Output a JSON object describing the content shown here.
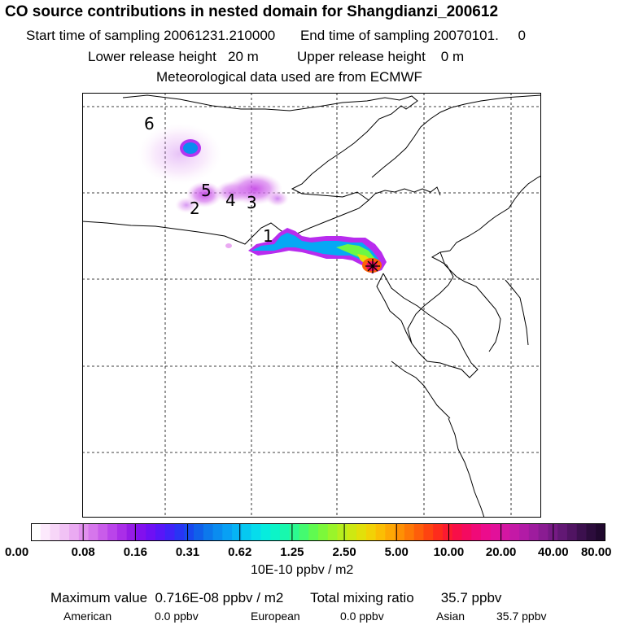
{
  "header": {
    "title": "CO  source contributions in nested domain for Shangdianzi_200612",
    "start_label": "Start time of sampling",
    "start_value": "20061231.210000",
    "end_label": "End time of sampling",
    "end_value": "20070101.",
    "end_suffix": "0",
    "lower_label": "Lower release height",
    "lower_value": "20 m",
    "upper_label": "Upper release height",
    "upper_value": "0 m",
    "met_data": "Meteorological data used are from ECMWF"
  },
  "map": {
    "source_labels": [
      "1",
      "2",
      "3",
      "4",
      "5",
      "6"
    ],
    "receptor_marker": "star-marker"
  },
  "colorbar": {
    "tick_labels": [
      "0.00",
      "0.08",
      "0.16",
      "0.31",
      "0.62",
      "1.25",
      "2.50",
      "5.00",
      "10.00",
      "20.00",
      "40.00",
      "80.00"
    ],
    "colors": [
      "#ffffff",
      "#fce9fc",
      "#f7d6f8",
      "#f1c2f5",
      "#eaaaf2",
      "#e190ee",
      "#d676ec",
      "#c95cea",
      "#ba44ea",
      "#aa2ee8",
      "#961ce6",
      "#8210ee",
      "#6e10f4",
      "#5816f8",
      "#4022f8",
      "#2834f4",
      "#1848ee",
      "#1060ea",
      "#0c78ec",
      "#0a8cf0",
      "#08a0f4",
      "#06b4f4",
      "#06c8f0",
      "#06dcec",
      "#06ecde",
      "#0cf4c8",
      "#18f8ae",
      "#2cfa90",
      "#44fa70",
      "#60fa50",
      "#7cf83a",
      "#9af42a",
      "#b6ee1e",
      "#cee812",
      "#e2e00a",
      "#f2d206",
      "#fbbe04",
      "#fea804",
      "#fe9004",
      "#fe7806",
      "#fe5e0a",
      "#fe4410",
      "#fe2c1c",
      "#fc1a30",
      "#f80e48",
      "#f40a60",
      "#f00a78",
      "#ec0c8c",
      "#e2109a",
      "#d416a2",
      "#c419a6",
      "#b21ba6",
      "#9e1c9e",
      "#8a1c92",
      "#761a84",
      "#621874",
      "#501462",
      "#3c104e",
      "#2c0c3c",
      "#20082e"
    ],
    "units": "10E-10 ppbv / m2"
  },
  "summary": {
    "max_label": "Maximum value",
    "max_value": "0.716E-08 ppbv / m2",
    "total_label": "Total mixing ratio",
    "total_value": "35.7 ppbv",
    "regions": [
      {
        "name": "American",
        "value": "0.0 ppbv"
      },
      {
        "name": "European",
        "value": "0.0 ppbv"
      },
      {
        "name": "Asian",
        "value": "35.7 ppbv"
      }
    ]
  }
}
